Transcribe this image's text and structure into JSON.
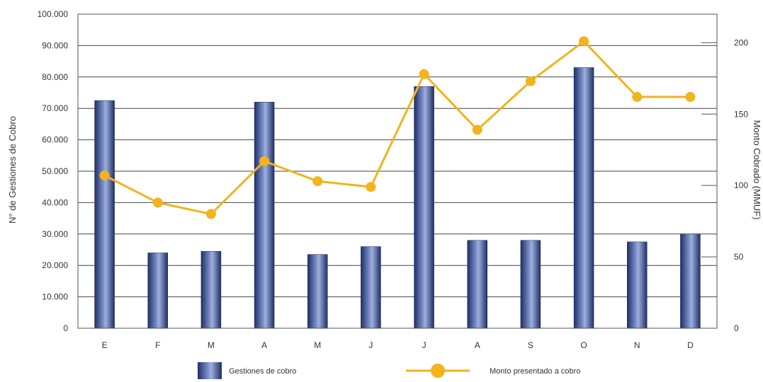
{
  "chart_data": {
    "type": "bar",
    "categories": [
      "E",
      "F",
      "M",
      "A",
      "M",
      "J",
      "J",
      "A",
      "S",
      "O",
      "N",
      "D"
    ],
    "series": [
      {
        "name": "Gestiones de cobro",
        "type": "bar",
        "axis": "left",
        "values": [
          72500,
          24000,
          24500,
          72000,
          23500,
          26000,
          77000,
          28000,
          28000,
          83000,
          27500,
          30000
        ]
      },
      {
        "name": "Monto presentado a cobro",
        "type": "line",
        "axis": "right",
        "values": [
          107,
          88,
          80,
          117,
          103,
          99,
          178,
          139,
          173,
          201,
          162,
          162
        ]
      }
    ],
    "ylabel": "N° de Gestiones de Cobro",
    "y2label": "Monto Cobrado (MMUF)",
    "ylim": [
      0,
      100000
    ],
    "y2lim": [
      0,
      220
    ],
    "yticks": [
      "0",
      "10.000",
      "20.000",
      "30.000",
      "40.000",
      "50.000",
      "60.000",
      "70.000",
      "80.000",
      "90.000",
      "100.000"
    ],
    "y2ticks": [
      "0",
      "50",
      "100",
      "150",
      "200"
    ],
    "grid": true,
    "legend": "bottom",
    "colors": {
      "bar": "#2d3f7a",
      "line": "#f2b31d"
    }
  }
}
